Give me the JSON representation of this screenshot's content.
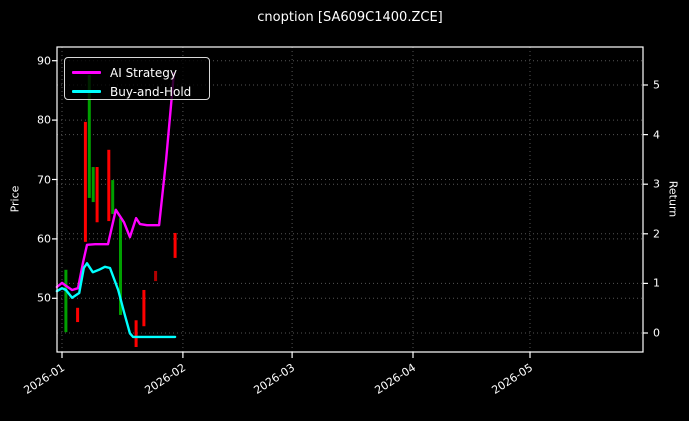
{
  "window": {
    "title": "cnoption [SA609C1400.ZCE]"
  },
  "chart_data": {
    "type": "candlestick+line",
    "title": "cnoption [SA609C1400.ZCE]",
    "x_axis": {
      "label": "",
      "ticks": [
        {
          "label": "2026-01",
          "day": 0
        },
        {
          "label": "2026-02",
          "day": 31
        },
        {
          "label": "2026-03",
          "day": 59
        },
        {
          "label": "2026-04",
          "day": 90
        },
        {
          "label": "2026-05",
          "day": 120
        }
      ],
      "range_days": [
        -1.3,
        149
      ],
      "range_dates": [
        "2025-12-30",
        "2026-05-30"
      ]
    },
    "y_left": {
      "label": "Price",
      "ticks": [
        50,
        60,
        70,
        80,
        90
      ],
      "lim": [
        41.0,
        92.3
      ]
    },
    "y_right": {
      "label": "Return",
      "ticks": [
        0,
        1,
        2,
        3,
        4,
        5
      ],
      "lim": [
        -0.38,
        5.77
      ]
    },
    "grid": {
      "on": true,
      "style": "dotted",
      "color": "#555555"
    },
    "legend": {
      "position": "upper-left",
      "entries": [
        {
          "label": "AI Strategy",
          "color": "#ff00ff"
        },
        {
          "label": "Buy-and-Hold",
          "color": "#00ffff"
        }
      ]
    },
    "bars": [
      {
        "date": "2026-01-02",
        "day": 1,
        "high": 54.8,
        "low": 44.3,
        "dir": "up"
      },
      {
        "date": "2026-01-05",
        "day": 4,
        "high": 48.4,
        "low": 46.0,
        "dir": "down"
      },
      {
        "date": "2026-01-07",
        "day": 6,
        "high": 79.7,
        "low": 59.5,
        "dir": "down"
      },
      {
        "date": "2026-01-08",
        "day": 7,
        "high": 87.6,
        "low": 66.9,
        "dir": "up"
      },
      {
        "date": "2026-01-09",
        "day": 8,
        "high": 72.1,
        "low": 66.2,
        "dir": "up"
      },
      {
        "date": "2026-01-10",
        "day": 9,
        "high": 72.1,
        "low": 62.8,
        "dir": "down"
      },
      {
        "date": "2026-01-13",
        "day": 12,
        "high": 75.0,
        "low": 63.0,
        "dir": "down"
      },
      {
        "date": "2026-01-14",
        "day": 13,
        "high": 69.9,
        "low": 64.2,
        "dir": "up"
      },
      {
        "date": "2026-01-16",
        "day": 15,
        "high": 63.5,
        "low": 47.2,
        "dir": "up"
      },
      {
        "date": "2026-01-20",
        "day": 19,
        "high": 46.3,
        "low": 41.8,
        "dir": "down"
      },
      {
        "date": "2026-01-22",
        "day": 21,
        "high": 51.4,
        "low": 45.3,
        "dir": "down"
      },
      {
        "date": "2026-01-25",
        "day": 24,
        "high": 54.6,
        "low": 52.9,
        "dir": "down-dim"
      },
      {
        "date": "2026-01-30",
        "day": 29,
        "high": 61.0,
        "low": 56.8,
        "dir": "down"
      }
    ],
    "series": [
      {
        "name": "AI Strategy",
        "color": "#ff00ff",
        "points": [
          [
            -1.3,
            51.9
          ],
          [
            0,
            52.6
          ],
          [
            1,
            52.1
          ],
          [
            2.6,
            51.4
          ],
          [
            4.1,
            51.7
          ],
          [
            5.4,
            56.1
          ],
          [
            6.4,
            59.0
          ],
          [
            8.5,
            59.1
          ],
          [
            11.8,
            59.1
          ],
          [
            13.8,
            64.9
          ],
          [
            15.9,
            62.8
          ],
          [
            17.4,
            60.3
          ],
          [
            19,
            63.5
          ],
          [
            20,
            62.5
          ],
          [
            21.8,
            62.3
          ],
          [
            24.9,
            62.3
          ],
          [
            26.7,
            73.3
          ],
          [
            28.7,
            87.9
          ]
        ]
      },
      {
        "name": "Buy-and-Hold",
        "color": "#00ffff",
        "points": [
          [
            -1.3,
            51.2
          ],
          [
            0,
            51.7
          ],
          [
            1,
            51.4
          ],
          [
            2.6,
            50.1
          ],
          [
            4.4,
            50.9
          ],
          [
            5.6,
            55.1
          ],
          [
            6.4,
            55.9
          ],
          [
            7.9,
            54.4
          ],
          [
            9.5,
            54.8
          ],
          [
            11,
            55.3
          ],
          [
            12.3,
            55.1
          ],
          [
            14.4,
            51.4
          ],
          [
            15.9,
            47.7
          ],
          [
            17.4,
            44.1
          ],
          [
            18.2,
            43.5
          ],
          [
            29,
            43.5
          ]
        ]
      }
    ],
    "colors": {
      "up": "#00a000",
      "down": "#ff0000",
      "down_dim": "#b30000",
      "background": "#000000",
      "text": "#ffffff",
      "grid": "#555555",
      "spine": "#ffffff"
    }
  }
}
